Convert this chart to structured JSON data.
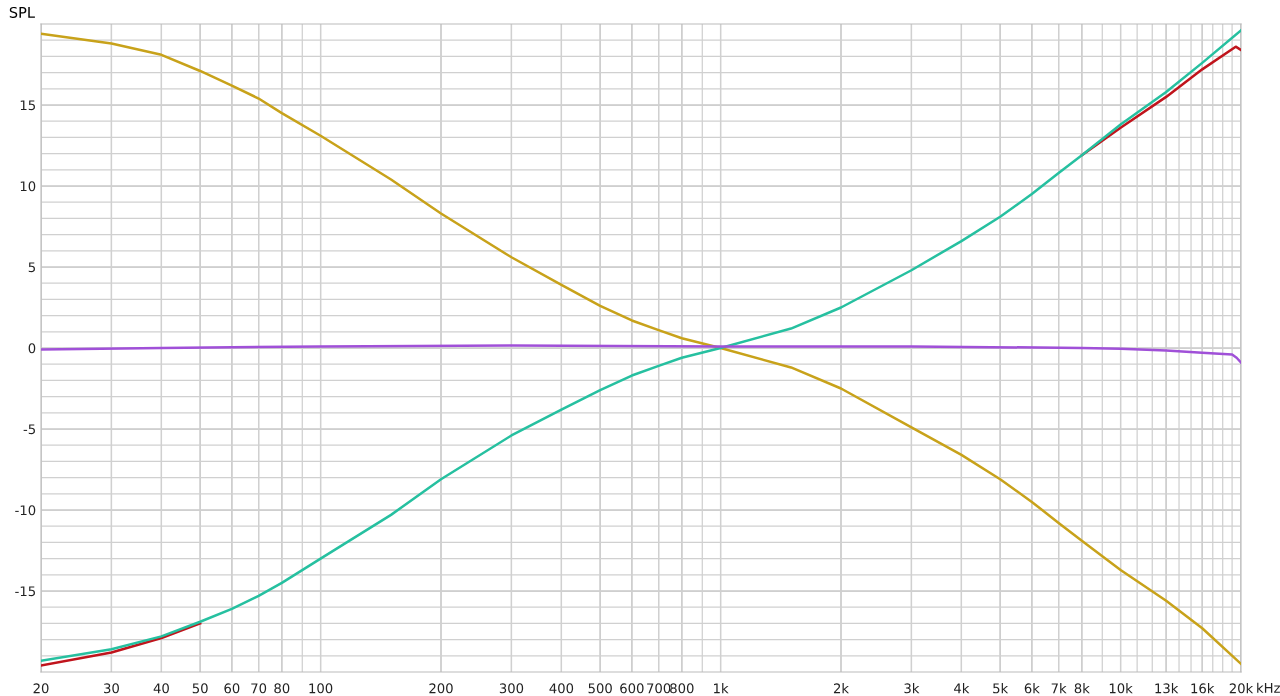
{
  "chart_data": {
    "type": "line",
    "ylabel": "SPL",
    "log": "x",
    "grid": true,
    "marker": "none",
    "line_style": "solid",
    "xlim": [
      20,
      20000
    ],
    "ylim": [
      -20,
      20
    ],
    "xticks": [
      20,
      30,
      40,
      50,
      60,
      70,
      80,
      {
        "value": 90,
        "label": null
      },
      100,
      200,
      300,
      400,
      500,
      600,
      700,
      800,
      {
        "value": 900,
        "label": null
      },
      {
        "value": 1000,
        "label": "1k"
      },
      {
        "value": 2000,
        "label": "2k"
      },
      {
        "value": 3000,
        "label": "3k"
      },
      {
        "value": 4000,
        "label": "4k"
      },
      {
        "value": 5000,
        "label": "5k"
      },
      {
        "value": 6000,
        "label": "6k"
      },
      {
        "value": 7000,
        "label": "7k"
      },
      {
        "value": 8000,
        "label": "8k"
      },
      {
        "value": 9000,
        "label": null
      },
      {
        "value": 10000,
        "label": "10k"
      },
      {
        "value": 11000,
        "label": null
      },
      {
        "value": 12000,
        "label": null
      },
      {
        "value": 13000,
        "label": "13k"
      },
      {
        "value": 14000,
        "label": null
      },
      {
        "value": 15000,
        "label": null
      },
      {
        "value": 16000,
        "label": "16k"
      },
      {
        "value": 17000,
        "label": null
      },
      {
        "value": 18000,
        "label": null
      },
      {
        "value": 19000,
        "label": null
      },
      {
        "value": 20000,
        "label": "20k"
      }
    ],
    "xlabel": "kHz",
    "yticks": [
      {
        "value": -19,
        "label": null
      },
      {
        "value": -18,
        "label": null
      },
      {
        "value": -17,
        "label": null
      },
      {
        "value": -16,
        "label": null
      },
      -15,
      {
        "value": -14,
        "label": null
      },
      {
        "value": -13,
        "label": null
      },
      {
        "value": -12,
        "label": null
      },
      {
        "value": -11,
        "label": null
      },
      -10,
      {
        "value": -9,
        "label": null
      },
      {
        "value": -8,
        "label": null
      },
      {
        "value": -7,
        "label": null
      },
      {
        "value": -6,
        "label": null
      },
      -5,
      {
        "value": -4,
        "label": null
      },
      {
        "value": -3,
        "label": null
      },
      {
        "value": -2,
        "label": null
      },
      {
        "value": -1,
        "label": null
      },
      0,
      {
        "value": 1,
        "label": null
      },
      {
        "value": 2,
        "label": null
      },
      {
        "value": 3,
        "label": null
      },
      {
        "value": 4,
        "label": null
      },
      5,
      {
        "value": 6,
        "label": null
      },
      {
        "value": 7,
        "label": null
      },
      {
        "value": 8,
        "label": null
      },
      {
        "value": 9,
        "label": null
      },
      10,
      {
        "value": 11,
        "label": null
      },
      {
        "value": 12,
        "label": null
      },
      {
        "value": 13,
        "label": null
      },
      {
        "value": 14,
        "label": null
      },
      15,
      {
        "value": 16,
        "label": null
      },
      {
        "value": 17,
        "label": null
      },
      {
        "value": 18,
        "label": null
      },
      {
        "value": 19,
        "label": null
      }
    ],
    "series": [
      {
        "color": "#c8a21a",
        "x": [
          20,
          30,
          40,
          50,
          60,
          70,
          80,
          100,
          150,
          200,
          300,
          400,
          500,
          600,
          700,
          800,
          1000,
          1500,
          2000,
          3000,
          4000,
          5000,
          6000,
          7000,
          8000,
          10000,
          13000,
          16000,
          20000
        ],
        "values": [
          19.4,
          18.8,
          18.1,
          17.1,
          16.2,
          15.4,
          14.5,
          13.1,
          10.4,
          8.3,
          5.6,
          3.9,
          2.6,
          1.7,
          1.1,
          0.6,
          0,
          -1.2,
          -2.5,
          -4.9,
          -6.6,
          -8.1,
          -9.5,
          -10.8,
          -11.9,
          -13.7,
          -15.6,
          -17.3,
          -19.5
        ]
      },
      {
        "color": "#c0141c",
        "x": [
          20,
          30,
          40,
          50,
          60,
          70,
          80,
          100,
          150,
          200,
          300,
          400,
          500,
          600,
          700,
          800,
          1000,
          1500,
          2000,
          3000,
          4000,
          5000,
          6000,
          7000,
          8000,
          10000,
          13000,
          16000,
          19400,
          20000
        ],
        "values": [
          -19.6,
          -18.8,
          -17.9,
          -17.0,
          null,
          null,
          null,
          null,
          null,
          null,
          null,
          null,
          null,
          null,
          null,
          null,
          null,
          null,
          null,
          null,
          null,
          null,
          null,
          null,
          11.9,
          13.6,
          15.5,
          17.2,
          18.6,
          18.4
        ]
      },
      {
        "color": "#26c0a0",
        "x": [
          20,
          30,
          40,
          50,
          60,
          70,
          80,
          100,
          150,
          200,
          300,
          400,
          500,
          600,
          700,
          800,
          1000,
          1500,
          2000,
          3000,
          4000,
          5000,
          6000,
          7000,
          8000,
          10000,
          13000,
          16000,
          20000
        ],
        "values": [
          -19.3,
          -18.6,
          -17.8,
          -16.9,
          -16.1,
          -15.3,
          -14.5,
          -13.0,
          -10.3,
          -8.1,
          -5.4,
          -3.8,
          -2.6,
          -1.7,
          -1.1,
          -0.6,
          0,
          1.2,
          2.5,
          4.8,
          6.6,
          8.1,
          9.5,
          10.8,
          11.9,
          13.8,
          15.8,
          17.6,
          19.6
        ]
      },
      {
        "color": "#a050d8",
        "x": [
          20,
          40,
          100,
          300,
          1000,
          3000,
          8000,
          10000,
          13000,
          16000,
          19000,
          19500,
          20000
        ],
        "values": [
          -0.1,
          0.0,
          0.1,
          0.15,
          0.1,
          0.1,
          0.0,
          -0.05,
          -0.15,
          -0.3,
          -0.4,
          -0.6,
          -0.9
        ]
      }
    ]
  }
}
